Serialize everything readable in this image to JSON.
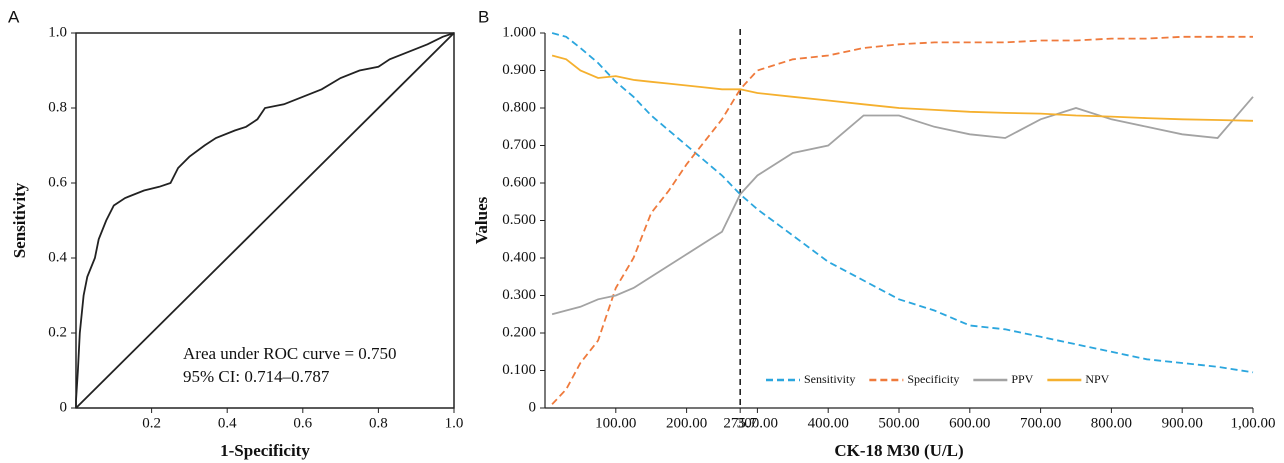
{
  "chart_data": [
    {
      "type": "line",
      "panel_label": "A",
      "x_label": "1-Specificity",
      "y_label": "Sensitivity",
      "annotations": [
        "Area under ROC curve = 0.750",
        "95% CI: 0.714–0.787"
      ],
      "xlim": [
        0,
        1
      ],
      "ylim": [
        0,
        1
      ],
      "xticks": [
        0.2,
        0.4,
        0.6,
        0.8,
        {
          "value": 1,
          "label": "1.0"
        }
      ],
      "yticks": [
        0,
        0.2,
        0.4,
        0.6,
        0.8,
        {
          "value": 1,
          "label": "1.0"
        }
      ],
      "x": [
        0,
        0,
        0.005,
        0.01,
        0.02,
        0.03,
        0.05,
        0.06,
        0.08,
        0.1,
        0.13,
        0.18,
        0.22,
        0.25,
        0.27,
        0.3,
        0.34,
        0.37,
        0.42,
        0.45,
        0.48,
        0.5,
        0.55,
        0.6,
        0.65,
        0.7,
        0.75,
        0.8,
        0.83,
        0.88,
        0.93,
        0.97,
        1
      ],
      "series": [
        {
          "color": "#222222",
          "values": [
            0,
            0.02,
            0.1,
            0.2,
            0.3,
            0.35,
            0.4,
            0.45,
            0.5,
            0.54,
            0.56,
            0.58,
            0.59,
            0.6,
            0.64,
            0.67,
            0.7,
            0.72,
            0.74,
            0.75,
            0.77,
            0.8,
            0.81,
            0.83,
            0.85,
            0.88,
            0.9,
            0.91,
            0.93,
            0.95,
            0.97,
            0.99,
            1
          ]
        }
      ],
      "diagonal": true
    },
    {
      "type": "line",
      "panel_label": "B",
      "x_label": "CK-18 M30 (U/L)",
      "y_label": "Values",
      "xlim": [
        0,
        1000
      ],
      "ylim": [
        0,
        1
      ],
      "xticks": [
        {
          "value": 100,
          "label": "100.00"
        },
        {
          "value": 200,
          "label": "200.00"
        },
        275.7,
        {
          "value": 300,
          "label": "300.00"
        },
        {
          "value": 400,
          "label": "400.00"
        },
        {
          "value": 500,
          "label": "500.00"
        },
        {
          "value": 600,
          "label": "600.00"
        },
        {
          "value": 700,
          "label": "700.00"
        },
        {
          "value": 800,
          "label": "800.00"
        },
        {
          "value": 900,
          "label": "900.00"
        },
        {
          "value": 1000,
          "label": "1,00.00"
        }
      ],
      "yticks": [
        0,
        {
          "value": 0.1,
          "label": "0.100"
        },
        {
          "value": 0.2,
          "label": "0.200"
        },
        {
          "value": 0.3,
          "label": "0.300"
        },
        {
          "value": 0.4,
          "label": "0.400"
        },
        {
          "value": 0.5,
          "label": "0.500"
        },
        {
          "value": 0.6,
          "label": "0.600"
        },
        {
          "value": 0.7,
          "label": "0.700"
        },
        {
          "value": 0.8,
          "label": "0.800"
        },
        {
          "value": 0.9,
          "label": "0.900"
        },
        {
          "value": 1,
          "label": "1.000"
        }
      ],
      "vline": 275.7,
      "legend": "bottom",
      "x": [
        10,
        30,
        50,
        75,
        100,
        125,
        150,
        175,
        200,
        225,
        250,
        275.7,
        300,
        350,
        400,
        450,
        500,
        550,
        600,
        650,
        700,
        750,
        800,
        850,
        900,
        950,
        1000
      ],
      "series": [
        {
          "name": "Sensitivity",
          "color": "#2ba6de",
          "dashed": true,
          "values": [
            1.0,
            0.99,
            0.96,
            0.92,
            0.87,
            0.83,
            0.78,
            0.74,
            0.7,
            0.66,
            0.62,
            0.57,
            0.53,
            0.46,
            0.39,
            0.34,
            0.29,
            0.26,
            0.22,
            0.21,
            0.19,
            0.17,
            0.15,
            0.13,
            0.12,
            0.11,
            0.095
          ]
        },
        {
          "name": "Specificity",
          "color": "#ef7a3c",
          "dashed": true,
          "values": [
            0.01,
            0.05,
            0.12,
            0.18,
            0.32,
            0.4,
            0.52,
            0.58,
            0.65,
            0.71,
            0.77,
            0.85,
            0.9,
            0.93,
            0.94,
            0.96,
            0.97,
            0.975,
            0.975,
            0.975,
            0.98,
            0.98,
            0.985,
            0.985,
            0.99,
            0.99,
            0.99
          ]
        },
        {
          "name": "PPV",
          "color": "#a3a3a3",
          "dashed": false,
          "values": [
            0.25,
            0.26,
            0.27,
            0.29,
            0.3,
            0.32,
            0.35,
            0.38,
            0.41,
            0.44,
            0.47,
            0.57,
            0.62,
            0.68,
            0.7,
            0.78,
            0.78,
            0.75,
            0.73,
            0.72,
            0.77,
            0.8,
            0.77,
            0.75,
            0.73,
            0.72,
            0.83
          ]
        },
        {
          "name": "NPV",
          "color": "#f5b02e",
          "dashed": false,
          "values": [
            0.94,
            0.93,
            0.9,
            0.88,
            0.885,
            0.875,
            0.87,
            0.865,
            0.86,
            0.855,
            0.85,
            0.85,
            0.84,
            0.83,
            0.82,
            0.81,
            0.8,
            0.795,
            0.79,
            0.787,
            0.785,
            0.78,
            0.777,
            0.773,
            0.77,
            0.768,
            0.766
          ]
        }
      ]
    }
  ]
}
